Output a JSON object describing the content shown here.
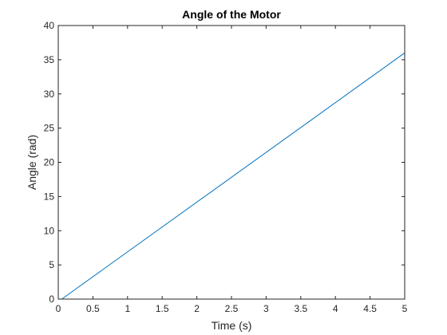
{
  "chart_data": {
    "type": "line",
    "title": "Angle of the Motor",
    "xlabel": "Time (s)",
    "ylabel": "Angle (rad)",
    "xlim": [
      0,
      5
    ],
    "ylim": [
      0,
      40
    ],
    "grid": false,
    "legend": "none",
    "x_ticks": [
      "0",
      "0.5",
      "1",
      "1.5",
      "2",
      "2.5",
      "3",
      "3.5",
      "4",
      "4.5",
      "5"
    ],
    "y_ticks": [
      "0",
      "5",
      "10",
      "15",
      "20",
      "25",
      "30",
      "35",
      "40"
    ],
    "series": [
      {
        "color": "#0072BD",
        "x": [
          0.05,
          5.0
        ],
        "y": [
          0.0,
          36.0
        ]
      }
    ]
  }
}
